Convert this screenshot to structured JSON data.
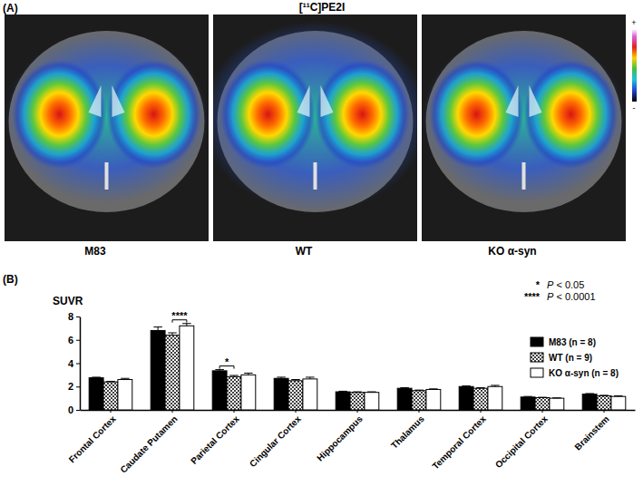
{
  "panel_a": {
    "label": "(A)",
    "title": "[¹¹C]PE2I",
    "images": [
      "M83",
      "WT",
      "KO α-syn"
    ],
    "colorbar_labels": [
      "+",
      "-"
    ]
  },
  "chart_data": {
    "type": "bar",
    "panel_label": "(B)",
    "y_label": "SUVR",
    "categories": [
      "Frontal Cortex",
      "Caudate Putamen",
      "Parietal Cortex",
      "Cingular Cortex",
      "Hippocampus",
      "Thalamus",
      "Temporal Cortex",
      "Occipital Cortex",
      "Brainstem"
    ],
    "series": [
      {
        "name": "M83 (n = 8)",
        "color": "#000000",
        "values": [
          2.75,
          6.8,
          3.35,
          2.7,
          1.55,
          1.85,
          2.0,
          1.1,
          1.35
        ],
        "errors": [
          0.05,
          0.3,
          0.1,
          0.1,
          0.05,
          0.05,
          0.05,
          0.05,
          0.05
        ]
      },
      {
        "name": "WT (n = 9)",
        "color": "#404040",
        "values": [
          2.4,
          6.4,
          2.85,
          2.5,
          1.5,
          1.65,
          1.85,
          1.05,
          1.2
        ],
        "errors": [
          0.05,
          0.2,
          0.1,
          0.1,
          0.05,
          0.05,
          0.05,
          0.03,
          0.05
        ]
      },
      {
        "name": "KO α-syn (n = 8)",
        "color": "#ffffff",
        "values": [
          2.6,
          7.2,
          3.0,
          2.65,
          1.5,
          1.75,
          2.0,
          1.0,
          1.15
        ],
        "errors": [
          0.1,
          0.2,
          0.15,
          0.15,
          0.05,
          0.05,
          0.1,
          0.03,
          0.05
        ]
      }
    ],
    "ylim": [
      0,
      8
    ],
    "yticks": [
      0,
      2,
      4,
      6,
      8
    ],
    "legend": "upper right",
    "significance_key": [
      {
        "symbol": "*",
        "text": "P < 0.05"
      },
      {
        "symbol": "****",
        "text": "P < 0.0001"
      }
    ],
    "significance": [
      {
        "category": "Caudate Putamen",
        "series": [
          "WT (n = 9)",
          "KO α-syn (n = 8)"
        ],
        "label": "****"
      },
      {
        "category": "Parietal Cortex",
        "series": [
          "M83 (n = 8)",
          "WT (n = 9)"
        ],
        "label": "*"
      }
    ]
  }
}
